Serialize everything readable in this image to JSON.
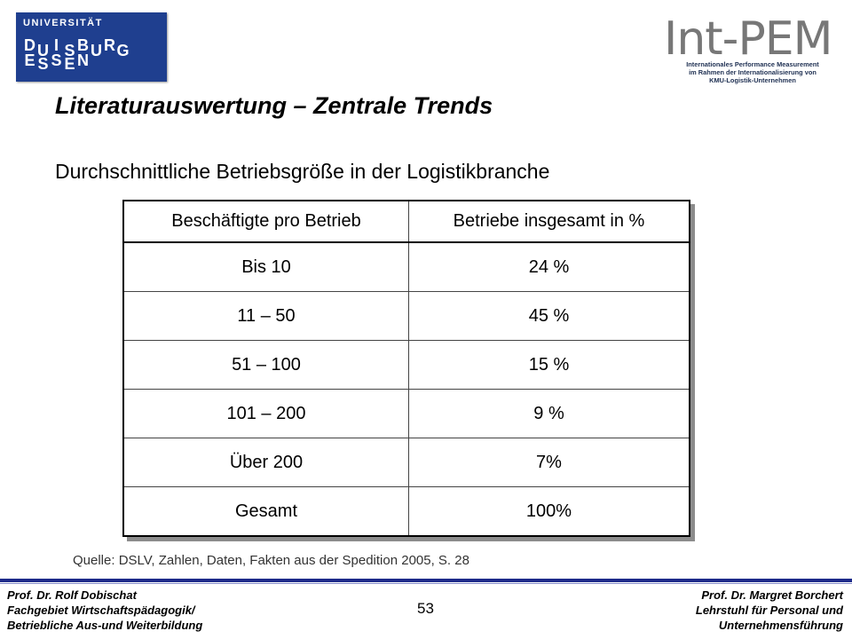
{
  "logos": {
    "university": {
      "top": "UNIVERSITÄT",
      "row1": [
        "D",
        "U",
        "I",
        "S",
        "B",
        "U",
        "R",
        "G"
      ],
      "row2": [
        "E",
        "S",
        "S",
        "E",
        "N"
      ]
    },
    "intpem": {
      "title": "Int-PEM",
      "subtitle_lines": [
        "Internationales Performance Measurement",
        "im Rahmen der Internationalisierung von",
        "KMU-Logistik-Unternehmen"
      ]
    }
  },
  "slide": {
    "title": "Literaturauswertung – Zentrale Trends",
    "subtitle": "Durchschnittliche Betriebsgröße in der Logistikbranche",
    "source": "Quelle: DSLV, Zahlen, Daten, Fakten aus der Spedition 2005, S. 28",
    "page_number": "53"
  },
  "table": {
    "headers": [
      "Beschäftigte pro Betrieb",
      "Betriebe insgesamt in %"
    ],
    "rows": [
      [
        "Bis 10",
        "24 %"
      ],
      [
        "11 – 50",
        "45 %"
      ],
      [
        "51 – 100",
        "15 %"
      ],
      [
        "101 – 200",
        "9 %"
      ],
      [
        "Über 200",
        "7%"
      ],
      [
        "Gesamt",
        "100%"
      ]
    ]
  },
  "footer": {
    "left_lines": [
      "Prof. Dr. Rolf Dobischat",
      "Fachgebiet Wirtschaftspädagogik/",
      "Betriebliche Aus-und Weiterbildung"
    ],
    "right_lines": [
      "Prof. Dr. Margret Borchert",
      "Lehrstuhl für Personal und",
      "Unternehmensführung"
    ]
  },
  "colors": {
    "university_blue": "#1f3f8f",
    "footer_rule": "#1e2b8a"
  }
}
